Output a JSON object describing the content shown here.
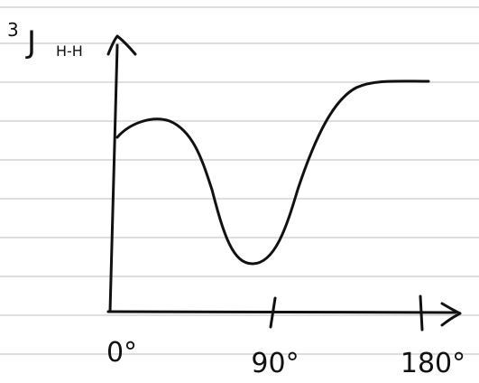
{
  "y_axis": {
    "superscript": "3",
    "main": "J",
    "subscript": "H-H"
  },
  "x_axis": {
    "ticks": [
      "0°",
      "90°",
      "180°"
    ]
  }
}
